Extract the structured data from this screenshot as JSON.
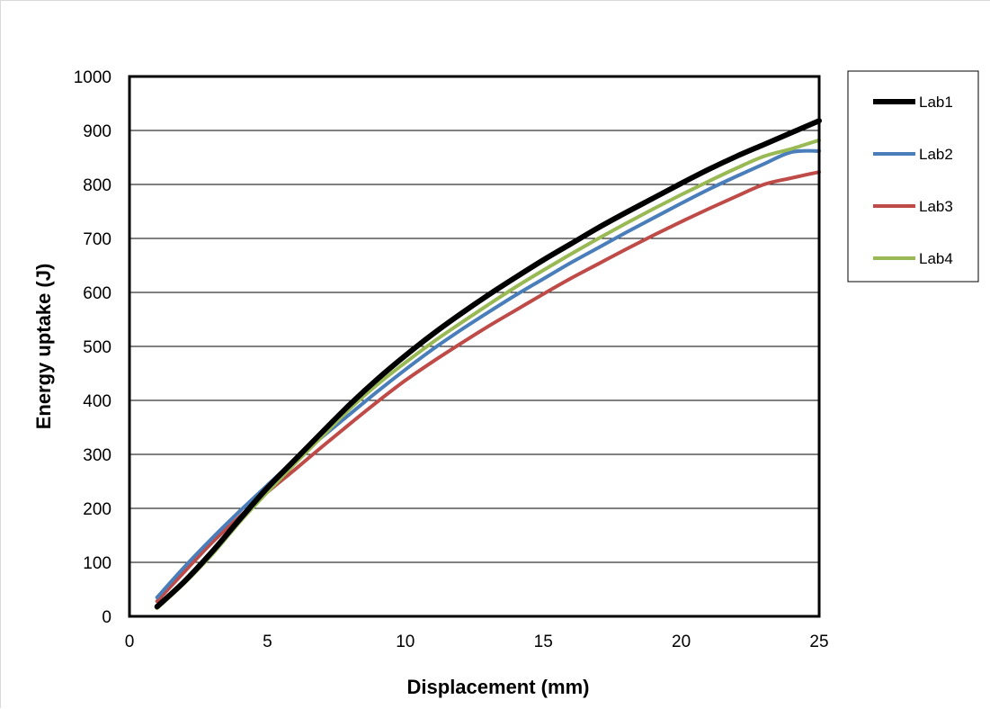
{
  "chart_data": {
    "type": "line",
    "title": "",
    "xlabel": "Displacement (mm)",
    "ylabel": "Energy uptake (J)",
    "xlim": [
      0,
      25
    ],
    "ylim": [
      0,
      1000
    ],
    "xticks": [
      0,
      5,
      10,
      15,
      20,
      25
    ],
    "yticks": [
      0,
      100,
      200,
      300,
      400,
      500,
      600,
      700,
      800,
      900,
      1000
    ],
    "grid": "horizontal",
    "legend_position": "right",
    "series": [
      {
        "name": "Lab1",
        "color": "#000000",
        "x": [
          1,
          2,
          3,
          4,
          5,
          6,
          7,
          8,
          9,
          10,
          11,
          12,
          13,
          14,
          15,
          16,
          17,
          18,
          19,
          20,
          21,
          22,
          23,
          24,
          25
        ],
        "y": [
          18,
          65,
          120,
          180,
          238,
          290,
          342,
          393,
          440,
          483,
          523,
          560,
          595,
          628,
          660,
          690,
          720,
          748,
          775,
          802,
          828,
          852,
          874,
          896,
          918
        ]
      },
      {
        "name": "Lab2",
        "color": "#4a7ebb",
        "x": [
          1,
          2,
          3,
          4,
          5,
          6,
          7,
          8,
          9,
          10,
          11,
          12,
          13,
          14,
          15,
          16,
          17,
          18,
          19,
          20,
          21,
          22,
          23,
          24,
          25
        ],
        "y": [
          35,
          92,
          145,
          195,
          243,
          290,
          333,
          375,
          417,
          457,
          495,
          530,
          563,
          595,
          625,
          655,
          683,
          711,
          738,
          765,
          791,
          815,
          838,
          860,
          862
        ]
      },
      {
        "name": "Lab3",
        "color": "#be4b48",
        "x": [
          1,
          2,
          3,
          4,
          5,
          6,
          7,
          8,
          9,
          10,
          11,
          12,
          13,
          14,
          15,
          16,
          17,
          18,
          19,
          20,
          21,
          22,
          23,
          24,
          25
        ],
        "y": [
          28,
          83,
          137,
          185,
          230,
          272,
          315,
          357,
          398,
          437,
          472,
          505,
          537,
          567,
          597,
          626,
          653,
          680,
          706,
          731,
          755,
          778,
          800,
          812,
          823
        ]
      },
      {
        "name": "Lab4",
        "color": "#98b954",
        "x": [
          1,
          2,
          3,
          4,
          5,
          6,
          7,
          8,
          9,
          10,
          11,
          12,
          13,
          14,
          15,
          16,
          17,
          18,
          19,
          20,
          21,
          22,
          23,
          24,
          25
        ],
        "y": [
          15,
          62,
          115,
          175,
          230,
          283,
          334,
          385,
          430,
          470,
          508,
          543,
          577,
          610,
          641,
          671,
          700,
          728,
          755,
          781,
          806,
          830,
          852,
          866,
          882
        ]
      }
    ]
  }
}
